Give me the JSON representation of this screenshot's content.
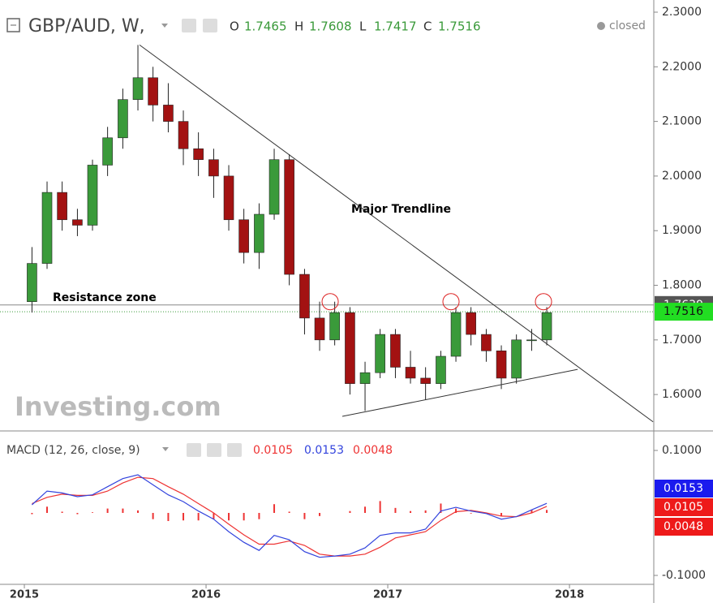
{
  "chart_data": [
    {
      "type": "candlestick",
      "title": "GBP/AUD, W,",
      "status": "closed",
      "ohlc_labels": [
        "O",
        "H",
        "L",
        "C"
      ],
      "ohlc_values": [
        1.7465,
        1.7608,
        1.7417,
        1.7516
      ],
      "annotations": [
        "Major Trendline",
        "Resistance zone"
      ],
      "watermark": "Investing.com",
      "resistance_level": 1.7639,
      "up_color": "#3a9a3a",
      "down_color": "#a31212",
      "x": [
        2015.042,
        2015.125,
        2015.208,
        2015.292,
        2015.375,
        2015.458,
        2015.542,
        2015.625,
        2015.708,
        2015.792,
        2015.875,
        2015.958,
        2016.042,
        2016.125,
        2016.208,
        2016.292,
        2016.375,
        2016.458,
        2016.542,
        2016.625,
        2016.708,
        2016.792,
        2016.875,
        2016.958,
        2017.042,
        2017.125,
        2017.208,
        2017.292,
        2017.375,
        2017.458,
        2017.542,
        2017.625,
        2017.708,
        2017.792,
        2017.875
      ],
      "open": [
        1.77,
        1.84,
        1.97,
        1.92,
        1.91,
        2.02,
        2.07,
        2.14,
        2.18,
        2.13,
        2.1,
        2.05,
        2.03,
        2.0,
        1.92,
        1.86,
        1.93,
        2.03,
        1.82,
        1.74,
        1.7,
        1.75,
        1.62,
        1.64,
        1.71,
        1.65,
        1.63,
        1.62,
        1.67,
        1.75,
        1.71,
        1.68,
        1.63,
        1.7,
        1.7
      ],
      "high": [
        1.87,
        1.99,
        1.99,
        1.94,
        2.03,
        2.09,
        2.16,
        2.24,
        2.2,
        2.17,
        2.12,
        2.08,
        2.05,
        2.02,
        1.94,
        1.95,
        2.05,
        2.04,
        1.83,
        1.77,
        1.77,
        1.76,
        1.66,
        1.72,
        1.72,
        1.68,
        1.65,
        1.68,
        1.76,
        1.76,
        1.72,
        1.69,
        1.71,
        1.72,
        1.76
      ],
      "low": [
        1.75,
        1.83,
        1.9,
        1.89,
        1.9,
        2.0,
        2.05,
        2.12,
        2.1,
        2.08,
        2.02,
        2.0,
        1.96,
        1.9,
        1.84,
        1.83,
        1.92,
        1.8,
        1.71,
        1.68,
        1.69,
        1.6,
        1.57,
        1.63,
        1.63,
        1.62,
        1.59,
        1.61,
        1.66,
        1.69,
        1.66,
        1.61,
        1.62,
        1.68,
        1.69
      ],
      "close": [
        1.84,
        1.97,
        1.92,
        1.91,
        2.02,
        2.07,
        2.14,
        2.18,
        2.13,
        2.1,
        2.05,
        2.03,
        2.0,
        1.92,
        1.86,
        1.93,
        2.03,
        1.82,
        1.74,
        1.7,
        1.75,
        1.62,
        1.64,
        1.71,
        1.65,
        1.63,
        1.62,
        1.67,
        1.75,
        1.71,
        1.68,
        1.63,
        1.7,
        1.7,
        1.75
      ],
      "trendlines": [
        {
          "x": [
            2015.634,
            2018.46
          ],
          "y": [
            2.24,
            1.55
          ]
        },
        {
          "x": [
            2016.75,
            2018.045
          ],
          "y": [
            1.56,
            1.646
          ]
        }
      ],
      "highlights": {
        "x": [
          2016.683,
          2017.348,
          2017.857
        ],
        "y": [
          1.77,
          1.77,
          1.77
        ]
      },
      "xlim": [
        2014.866,
        2018.464
      ],
      "xticks": [
        2015,
        2016,
        2017,
        2018
      ],
      "ylim": [
        1.5348,
        2.3223
      ],
      "yticks": [
        {
          "value": 2.3,
          "label": "2.3000"
        },
        {
          "value": 2.2,
          "label": "2.2000"
        },
        {
          "value": 2.1,
          "label": "2.1000"
        },
        {
          "value": 2.0,
          "label": "2.0000"
        },
        {
          "value": 1.9,
          "label": "1.9000"
        },
        {
          "value": 1.8,
          "label": "1.8000"
        },
        {
          "value": 1.7,
          "label": "1.7000"
        },
        {
          "value": 1.6,
          "label": "1.6000"
        }
      ]
    },
    {
      "type": "macd",
      "title": "MACD (12, 26, close, 9)",
      "x": [
        2015.042,
        2015.125,
        2015.208,
        2015.292,
        2015.375,
        2015.458,
        2015.542,
        2015.625,
        2015.708,
        2015.792,
        2015.875,
        2015.958,
        2016.042,
        2016.125,
        2016.208,
        2016.292,
        2016.375,
        2016.458,
        2016.542,
        2016.625,
        2016.708,
        2016.792,
        2016.875,
        2016.958,
        2017.042,
        2017.125,
        2017.208,
        2017.292,
        2017.375,
        2017.458,
        2017.542,
        2017.625,
        2017.708,
        2017.792,
        2017.875
      ],
      "signal": {
        "color": "#ee3333",
        "values": [
          0.015,
          0.025,
          0.03,
          0.028,
          0.028,
          0.035,
          0.048,
          0.057,
          0.055,
          0.042,
          0.03,
          0.015,
          0.0,
          -0.018,
          -0.035,
          -0.05,
          -0.05,
          -0.045,
          -0.052,
          -0.066,
          -0.069,
          -0.069,
          -0.066,
          -0.055,
          -0.04,
          -0.035,
          -0.03,
          -0.012,
          0.002,
          0.004,
          0.0,
          -0.005,
          -0.006,
          0.0,
          0.0105
        ]
      },
      "macd": {
        "color": "#3344dd",
        "values": [
          0.013,
          0.035,
          0.032,
          0.026,
          0.029,
          0.042,
          0.055,
          0.061,
          0.045,
          0.029,
          0.018,
          0.003,
          -0.01,
          -0.03,
          -0.047,
          -0.06,
          -0.036,
          -0.043,
          -0.062,
          -0.071,
          -0.069,
          -0.066,
          -0.056,
          -0.036,
          -0.032,
          -0.032,
          -0.026,
          0.003,
          0.009,
          0.003,
          -0.001,
          -0.01,
          -0.006,
          0.005,
          0.0153
        ]
      },
      "histogram": {
        "color": "#ee3333",
        "values": [
          -0.002,
          0.01,
          0.002,
          -0.002,
          0.001,
          0.007,
          0.007,
          0.004,
          -0.01,
          -0.013,
          -0.012,
          -0.012,
          -0.01,
          -0.012,
          -0.012,
          -0.01,
          0.014,
          0.002,
          -0.01,
          -0.005,
          0.0,
          0.003,
          0.01,
          0.019,
          0.008,
          0.003,
          0.004,
          0.015,
          0.007,
          -0.001,
          -0.001,
          -0.005,
          0.0,
          0.005,
          0.0048
        ]
      },
      "xlim": [
        2014.866,
        2018.464
      ],
      "ylim": [
        -0.1143,
        0.1299
      ],
      "yticks": [
        {
          "value": 0.1,
          "label": "0.1000"
        },
        {
          "value": -0.1,
          "label": "-0.1000"
        }
      ]
    }
  ]
}
